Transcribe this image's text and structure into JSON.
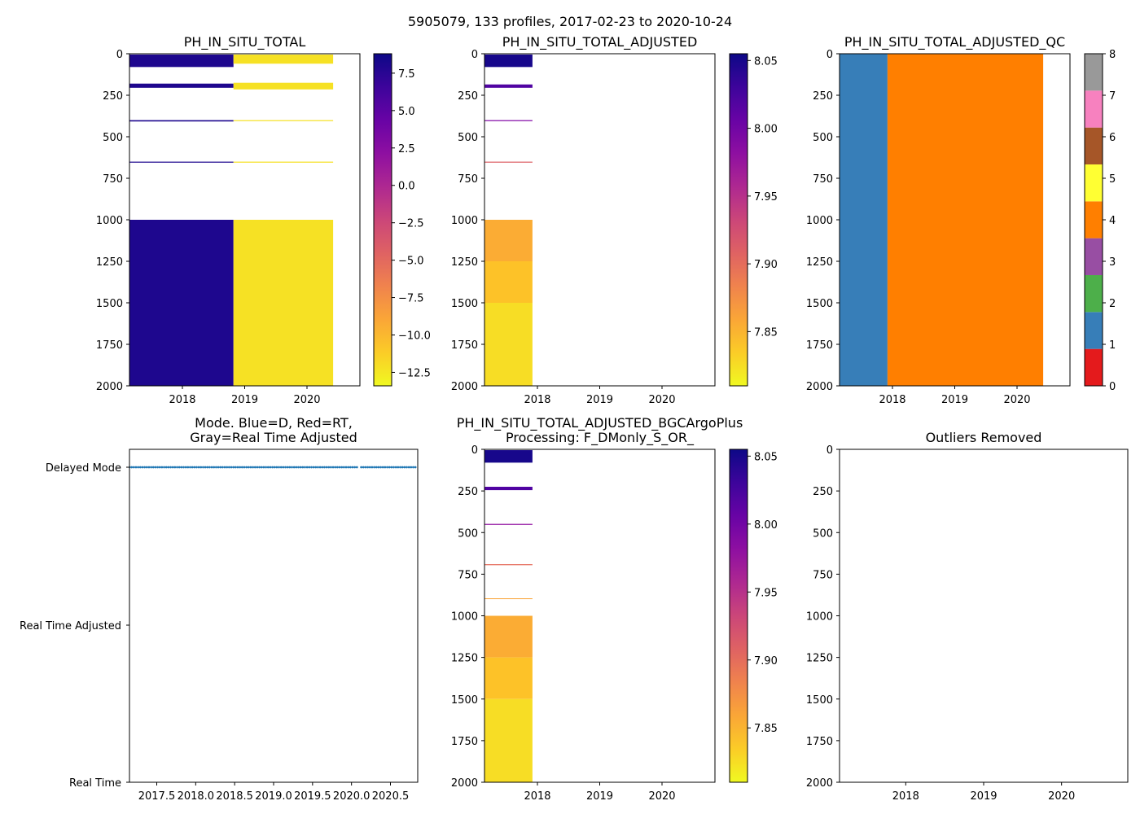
{
  "figure_title": "5905079, 133 profiles, 2017-02-23 to 2020-10-24",
  "chart_data": [
    {
      "id": "p1",
      "type": "heatmap",
      "title": "PH_IN_SITU_TOTAL",
      "ylim": [
        0,
        2000
      ],
      "y_inverted": true,
      "xlim": [
        2017.15,
        2020.85
      ],
      "yticks": [
        0,
        250,
        500,
        750,
        1000,
        1250,
        1500,
        1750,
        2000
      ],
      "xticks": [
        2018,
        2019,
        2020
      ],
      "xtick_labels": [
        "2018",
        "2019",
        "2020"
      ],
      "colormap": "plasma_r",
      "colorbar": {
        "min": -13.4,
        "max": 8.8,
        "ticks": [
          7.5,
          5.0,
          2.5,
          0.0,
          -2.5,
          -5.0,
          -7.5,
          -10.0,
          -12.5
        ],
        "tick_labels": [
          "7.5",
          "5.0",
          "2.5",
          "0.0",
          "−2.5",
          "−5.0",
          "−7.5",
          "−10.0",
          "−12.5"
        ]
      },
      "blocks": [
        {
          "x0": 2017.15,
          "x1": 2018.82,
          "y0": 1000,
          "y1": 2000,
          "value": 8.0
        },
        {
          "x0": 2018.82,
          "x1": 2020.42,
          "y0": 1000,
          "y1": 2000,
          "value": -12.2
        },
        {
          "x0": 2017.15,
          "x1": 2018.82,
          "y0": 180,
          "y1": 205,
          "value": 8.0
        },
        {
          "x0": 2018.82,
          "x1": 2020.42,
          "y0": 175,
          "y1": 215,
          "value": -12.2
        },
        {
          "x0": 2017.15,
          "x1": 2018.82,
          "y0": 400,
          "y1": 408,
          "value": 8.0
        },
        {
          "x0": 2018.82,
          "x1": 2020.42,
          "y0": 400,
          "y1": 406,
          "value": -12.2
        },
        {
          "x0": 2017.15,
          "x1": 2018.82,
          "y0": 650,
          "y1": 656,
          "value": 8.0
        },
        {
          "x0": 2018.82,
          "x1": 2020.42,
          "y0": 650,
          "y1": 656,
          "value": -12.2
        },
        {
          "x0": 2017.15,
          "x1": 2018.82,
          "y0": 5,
          "y1": 80,
          "value": 8.0
        },
        {
          "x0": 2018.82,
          "x1": 2020.42,
          "y0": 5,
          "y1": 60,
          "value": -12.2
        }
      ]
    },
    {
      "id": "p2",
      "type": "heatmap",
      "title": "PH_IN_SITU_TOTAL_ADJUSTED",
      "ylim": [
        0,
        2000
      ],
      "y_inverted": true,
      "xlim": [
        2017.15,
        2020.85
      ],
      "yticks": [
        0,
        250,
        500,
        750,
        1000,
        1250,
        1500,
        1750,
        2000
      ],
      "xticks": [
        2018,
        2019,
        2020
      ],
      "xtick_labels": [
        "2018",
        "2019",
        "2020"
      ],
      "colormap": "plasma_r",
      "colorbar": {
        "min": 7.81,
        "max": 8.055,
        "ticks": [
          8.05,
          8.0,
          7.95,
          7.9,
          7.85
        ],
        "tick_labels": [
          "8.05",
          "8.00",
          "7.95",
          "7.90",
          "7.85"
        ]
      },
      "blocks": [
        {
          "x0": 2017.15,
          "x1": 2017.92,
          "y0": 1000,
          "y1": 1250,
          "value": 7.855
        },
        {
          "x0": 2017.15,
          "x1": 2017.92,
          "y0": 1250,
          "y1": 1500,
          "value": 7.84
        },
        {
          "x0": 2017.15,
          "x1": 2017.92,
          "y0": 1500,
          "y1": 2000,
          "value": 7.825
        },
        {
          "x0": 2017.15,
          "x1": 2017.92,
          "y0": 185,
          "y1": 205,
          "value": 8.02
        },
        {
          "x0": 2017.15,
          "x1": 2017.92,
          "y0": 400,
          "y1": 406,
          "value": 7.99
        },
        {
          "x0": 2017.15,
          "x1": 2017.92,
          "y0": 650,
          "y1": 656,
          "value": 7.91
        },
        {
          "x0": 2017.15,
          "x1": 2017.92,
          "y0": 5,
          "y1": 80,
          "value": 8.05
        }
      ]
    },
    {
      "id": "p3",
      "type": "heatmap",
      "title": "PH_IN_SITU_TOTAL_ADJUSTED_QC",
      "ylim": [
        0,
        2000
      ],
      "y_inverted": true,
      "xlim": [
        2017.15,
        2020.85
      ],
      "yticks": [
        0,
        250,
        500,
        750,
        1000,
        1250,
        1500,
        1750,
        2000
      ],
      "xticks": [
        2018,
        2019,
        2020
      ],
      "xtick_labels": [
        "2018",
        "2019",
        "2020"
      ],
      "colorbar": {
        "min": 0,
        "max": 8,
        "ticks": [
          0,
          1,
          2,
          3,
          4,
          5,
          6,
          7,
          8
        ],
        "tick_labels": [
          "0",
          "1",
          "2",
          "3",
          "4",
          "5",
          "6",
          "7",
          "8"
        ],
        "categories": [
          {
            "from": 0,
            "to": 0.889,
            "color": "#e41a1c"
          },
          {
            "from": 0.889,
            "to": 1.778,
            "color": "#377eb8"
          },
          {
            "from": 1.778,
            "to": 2.667,
            "color": "#4daf4a"
          },
          {
            "from": 2.667,
            "to": 3.556,
            "color": "#984ea3"
          },
          {
            "from": 3.556,
            "to": 4.444,
            "color": "#ff7f00"
          },
          {
            "from": 4.444,
            "to": 5.333,
            "color": "#ffff33"
          },
          {
            "from": 5.333,
            "to": 6.222,
            "color": "#a65628"
          },
          {
            "from": 6.222,
            "to": 7.111,
            "color": "#f781bf"
          },
          {
            "from": 7.111,
            "to": 8,
            "color": "#999999"
          }
        ]
      },
      "blocks": [
        {
          "x0": 2017.15,
          "x1": 2017.92,
          "y0": 0,
          "y1": 2000,
          "value": 1,
          "color": "#377eb8"
        },
        {
          "x0": 2017.92,
          "x1": 2020.42,
          "y0": 0,
          "y1": 2000,
          "value": 4,
          "color": "#ff7f00"
        }
      ]
    },
    {
      "id": "p4",
      "type": "scatter",
      "title": "Mode. Blue=D, Red=RT,",
      "title_line2": "Gray=Real Time Adjusted",
      "xlim": [
        2017.15,
        2020.85
      ],
      "xticks": [
        2017.5,
        2018.0,
        2018.5,
        2019.0,
        2019.5,
        2020.0,
        2020.5
      ],
      "xtick_labels": [
        "2017.5",
        "2018.0",
        "2018.5",
        "2019.0",
        "2019.5",
        "2020.0",
        "2020.5"
      ],
      "ylim": [
        0,
        2
      ],
      "yticks": [
        2,
        1,
        0
      ],
      "ytick_labels": [
        "Delayed Mode",
        "Real Time Adjusted",
        "Real Time"
      ],
      "series": [
        {
          "name": "Delayed Mode",
          "color": "#1f77b4",
          "y": 2,
          "x_start": 2017.15,
          "x_end": 2020.82,
          "count": 133
        }
      ]
    },
    {
      "id": "p5",
      "type": "heatmap",
      "title": "PH_IN_SITU_TOTAL_ADJUSTED_BGCArgoPlus",
      "title_line2": "Processing: F_DMonly_S_OR_",
      "ylim": [
        0,
        2000
      ],
      "y_inverted": true,
      "xlim": [
        2017.15,
        2020.85
      ],
      "yticks": [
        0,
        250,
        500,
        750,
        1000,
        1250,
        1500,
        1750,
        2000
      ],
      "xticks": [
        2018,
        2019,
        2020
      ],
      "xtick_labels": [
        "2018",
        "2019",
        "2020"
      ],
      "colormap": "plasma_r",
      "colorbar": {
        "min": 7.81,
        "max": 8.055,
        "ticks": [
          8.05,
          8.0,
          7.95,
          7.9,
          7.85
        ],
        "tick_labels": [
          "8.05",
          "8.00",
          "7.95",
          "7.90",
          "7.85"
        ]
      },
      "blocks": [
        {
          "x0": 2017.15,
          "x1": 2017.92,
          "y0": 1000,
          "y1": 1250,
          "value": 7.855
        },
        {
          "x0": 2017.15,
          "x1": 2017.92,
          "y0": 1250,
          "y1": 1500,
          "value": 7.84
        },
        {
          "x0": 2017.15,
          "x1": 2017.92,
          "y0": 1500,
          "y1": 2000,
          "value": 7.825
        },
        {
          "x0": 2017.15,
          "x1": 2017.92,
          "y0": 225,
          "y1": 245,
          "value": 8.02
        },
        {
          "x0": 2017.15,
          "x1": 2017.92,
          "y0": 448,
          "y1": 454,
          "value": 7.98
        },
        {
          "x0": 2017.15,
          "x1": 2017.92,
          "y0": 690,
          "y1": 696,
          "value": 7.9
        },
        {
          "x0": 2017.15,
          "x1": 2017.92,
          "y0": 895,
          "y1": 900,
          "value": 7.86
        },
        {
          "x0": 2017.15,
          "x1": 2017.92,
          "y0": 5,
          "y1": 80,
          "value": 8.05
        }
      ]
    },
    {
      "id": "p6",
      "type": "heatmap",
      "title": "Outliers Removed",
      "ylim": [
        0,
        2000
      ],
      "y_inverted": true,
      "xlim": [
        2017.15,
        2020.85
      ],
      "yticks": [
        0,
        250,
        500,
        750,
        1000,
        1250,
        1500,
        1750,
        2000
      ],
      "xticks": [
        2018,
        2019,
        2020
      ],
      "xtick_labels": [
        "2018",
        "2019",
        "2020"
      ],
      "blocks": []
    }
  ]
}
